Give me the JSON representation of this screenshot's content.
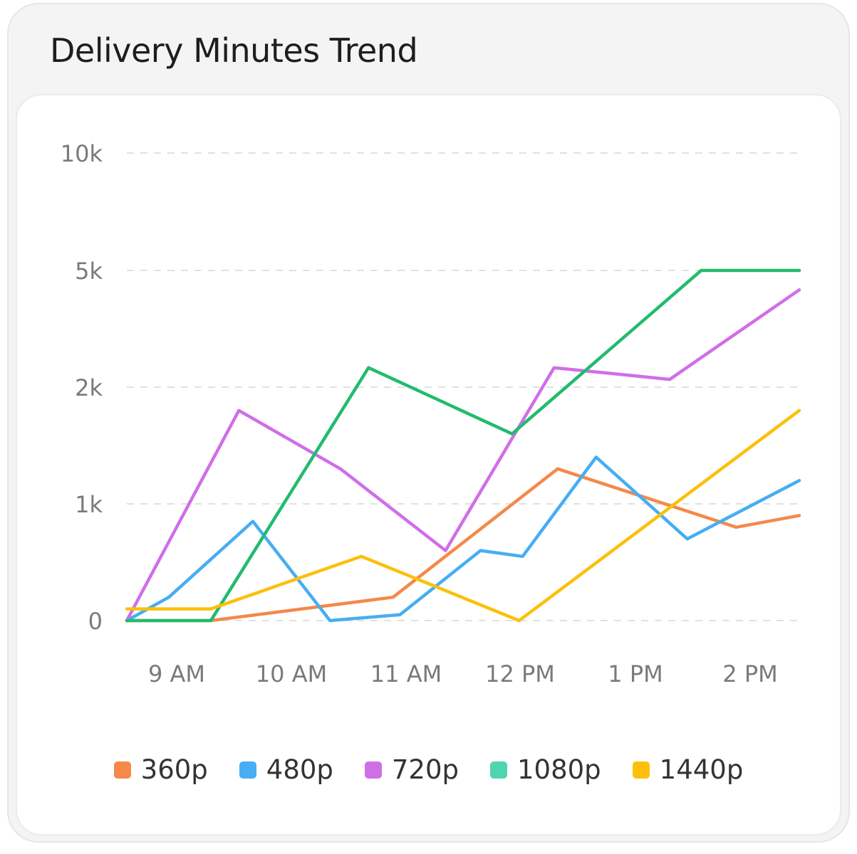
{
  "card": {
    "title": "Delivery Minutes Trend"
  },
  "chart_data": {
    "type": "line",
    "title": "Delivery Minutes Trend",
    "xlabel": "",
    "ylabel": "",
    "x_tick_labels": [
      "9 AM",
      "10 AM",
      "11 AM",
      "12 PM",
      "1 PM",
      "2 PM"
    ],
    "y_tick_labels": [
      "0",
      "1k",
      "2k",
      "5k",
      "10k"
    ],
    "y_ticks": [
      0,
      1000,
      2000,
      5000,
      10000
    ],
    "y_scale": "piecewise (equal spacing between 0, 1k, 2k, 5k, 10k)",
    "ylim": [
      0,
      10000
    ],
    "grid": "horizontal dashed",
    "legend_position": "bottom",
    "x": [
      0,
      0.75,
      2,
      2.85,
      4,
      5,
      6,
      6.5,
      7.3,
      8,
      8.85,
      9
    ],
    "series": [
      {
        "name": "360p",
        "color": "#f4894a",
        "points": [
          [
            0,
            0
          ],
          [
            1.2,
            0
          ],
          [
            3.8,
            200
          ],
          [
            6.15,
            1300
          ],
          [
            8.7,
            800
          ],
          [
            9.6,
            900
          ]
        ]
      },
      {
        "name": "480p",
        "color": "#46aef2",
        "points": [
          [
            0,
            0
          ],
          [
            0.6,
            200
          ],
          [
            1.8,
            850
          ],
          [
            2.9,
            0
          ],
          [
            3.9,
            50
          ],
          [
            5.05,
            600
          ],
          [
            5.65,
            550
          ],
          [
            6.7,
            1400
          ],
          [
            8.0,
            700
          ],
          [
            9.6,
            1200
          ]
        ]
      },
      {
        "name": "720p",
        "color": "#d06ee8",
        "points": [
          [
            0,
            0
          ],
          [
            1.6,
            1800
          ],
          [
            3.05,
            1300
          ],
          [
            4.55,
            600
          ],
          [
            6.1,
            2500
          ],
          [
            7.75,
            2200
          ],
          [
            9.6,
            4500
          ]
        ]
      },
      {
        "name": "1080p",
        "color": "#22bb6e",
        "points": [
          [
            0,
            0
          ],
          [
            1.2,
            0
          ],
          [
            3.45,
            2500
          ],
          [
            5.5,
            1600
          ],
          [
            8.2,
            5000
          ],
          [
            9.6,
            5000
          ]
        ]
      },
      {
        "name": "1440p",
        "color": "#fcc00b",
        "points": [
          [
            0,
            100
          ],
          [
            1.2,
            100
          ],
          [
            3.35,
            550
          ],
          [
            5.6,
            0
          ],
          [
            9.6,
            1800
          ]
        ]
      }
    ]
  },
  "legend": [
    {
      "label": "360p",
      "color": "#f4894a"
    },
    {
      "label": "480p",
      "color": "#46aef2"
    },
    {
      "label": "720p",
      "color": "#d06ee8"
    },
    {
      "label": "1080p",
      "color": "#4fd5b0"
    },
    {
      "label": "1440p",
      "color": "#fcc00b"
    }
  ]
}
